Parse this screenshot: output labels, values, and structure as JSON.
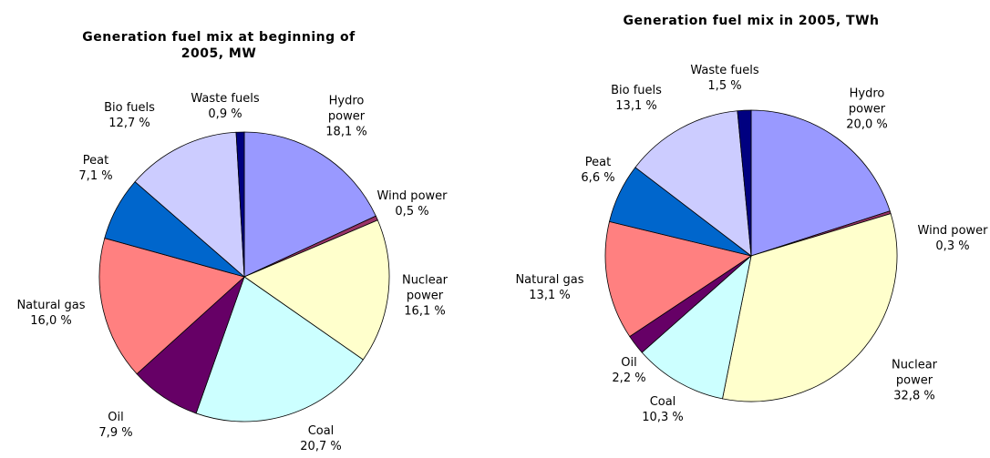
{
  "chart_data": [
    {
      "type": "pie",
      "title": "Generation fuel mix at beginning of 2005, MW",
      "categories": [
        "Hydro power",
        "Wind power",
        "Nuclear power",
        "Coal",
        "Oil",
        "Natural gas",
        "Peat",
        "Bio fuels",
        "Waste fuels"
      ],
      "values": [
        18.1,
        0.5,
        16.1,
        20.7,
        7.9,
        16.0,
        7.1,
        12.7,
        0.9
      ],
      "value_labels": [
        "18,1 %",
        "0,5 %",
        "16,1 %",
        "20,7 %",
        "7,9 %",
        "16,0 %",
        "7,1 %",
        "12,7 %",
        "0,9 %"
      ],
      "colors": [
        "#9999ff",
        "#993366",
        "#ffffcc",
        "#ccffff",
        "#660066",
        "#ff8080",
        "#0066cc",
        "#ccccff",
        "#000080"
      ]
    },
    {
      "type": "pie",
      "title": "Generation fuel mix in 2005, TWh",
      "categories": [
        "Hydro power",
        "Wind power",
        "Nuclear power",
        "Coal",
        "Oil",
        "Natural gas",
        "Peat",
        "Bio fuels",
        "Waste fuels"
      ],
      "values": [
        20.0,
        0.3,
        32.8,
        10.3,
        2.2,
        13.1,
        6.6,
        13.1,
        1.5
      ],
      "value_labels": [
        "20,0 %",
        "0,3 %",
        "32,8 %",
        "10,3 %",
        "2,2 %",
        "13,1 %",
        "6,6 %",
        "13,1 %",
        "1,5 %"
      ],
      "colors": [
        "#9999ff",
        "#993366",
        "#ffffcc",
        "#ccffff",
        "#660066",
        "#ff8080",
        "#0066cc",
        "#ccccff",
        "#000080"
      ]
    }
  ]
}
